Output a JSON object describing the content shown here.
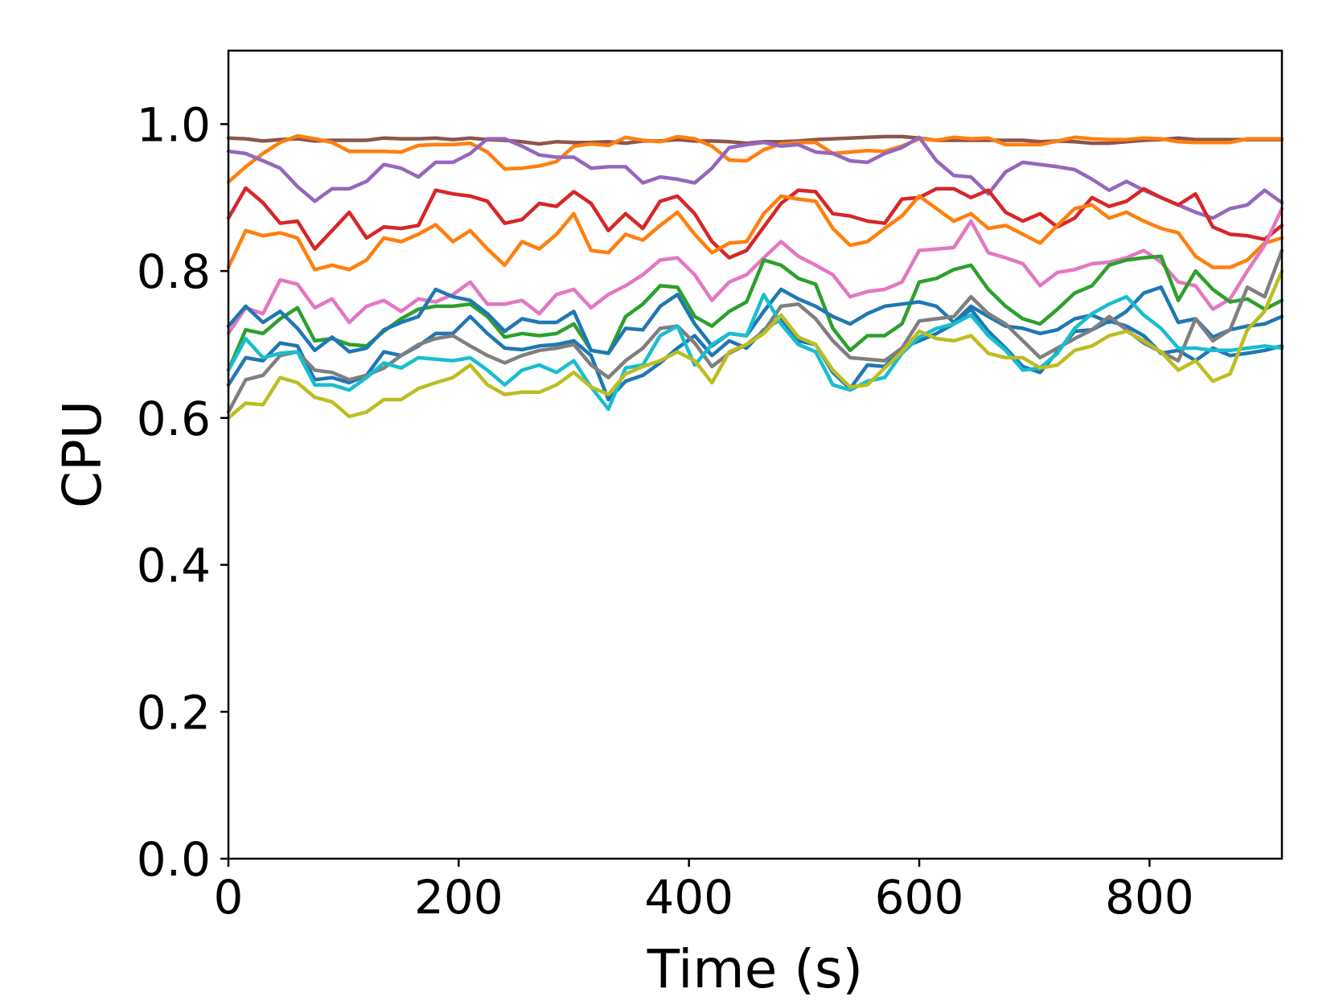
{
  "chart_data": {
    "type": "line",
    "title": "",
    "xlabel": "Time (s)",
    "ylabel": "CPU",
    "xlim": [
      0,
      915
    ],
    "ylim": [
      0.0,
      1.1
    ],
    "xticks": [
      0,
      200,
      400,
      600,
      800
    ],
    "xtick_labels": [
      "0",
      "200",
      "400",
      "600",
      "800"
    ],
    "yticks": [
      0.0,
      0.2,
      0.4,
      0.6,
      0.8,
      1.0
    ],
    "ytick_labels": [
      "0.0",
      "0.2",
      "0.4",
      "0.6",
      "0.8",
      "1.0"
    ],
    "grid": false,
    "legend": "none",
    "x": [
      0,
      15,
      30,
      45,
      60,
      75,
      90,
      105,
      120,
      135,
      150,
      165,
      180,
      195,
      210,
      225,
      240,
      255,
      270,
      285,
      300,
      315,
      330,
      345,
      360,
      375,
      390,
      405,
      420,
      435,
      450,
      465,
      480,
      495,
      510,
      525,
      540,
      555,
      570,
      585,
      600,
      615,
      630,
      645,
      660,
      675,
      690,
      705,
      720,
      735,
      750,
      765,
      780,
      795,
      810,
      825,
      840,
      855,
      870,
      885,
      900,
      915
    ],
    "series": [
      {
        "color": "#8c564b",
        "values": [
          0.981,
          0.98,
          0.977,
          0.979,
          0.98,
          0.977,
          0.978,
          0.978,
          0.978,
          0.981,
          0.98,
          0.98,
          0.981,
          0.979,
          0.981,
          0.979,
          0.978,
          0.976,
          0.973,
          0.976,
          0.975,
          0.975,
          0.976,
          0.974,
          0.977,
          0.977,
          0.979,
          0.977,
          0.977,
          0.976,
          0.974,
          0.976,
          0.976,
          0.977,
          0.979,
          0.98,
          0.981,
          0.982,
          0.983,
          0.983,
          0.981,
          0.978,
          0.978,
          0.978,
          0.978,
          0.978,
          0.978,
          0.976,
          0.977,
          0.976,
          0.974,
          0.974,
          0.976,
          0.978,
          0.979,
          0.981,
          0.979,
          0.979,
          0.979,
          0.979,
          0.979,
          0.979
        ]
      },
      {
        "color": "#ff7f0e",
        "values": [
          0.921,
          0.942,
          0.96,
          0.975,
          0.984,
          0.98,
          0.975,
          0.963,
          0.963,
          0.963,
          0.962,
          0.971,
          0.972,
          0.972,
          0.974,
          0.962,
          0.939,
          0.94,
          0.943,
          0.949,
          0.97,
          0.973,
          0.971,
          0.982,
          0.978,
          0.976,
          0.983,
          0.98,
          0.97,
          0.951,
          0.95,
          0.965,
          0.973,
          0.975,
          0.975,
          0.96,
          0.962,
          0.964,
          0.963,
          0.97,
          0.98,
          0.978,
          0.982,
          0.98,
          0.981,
          0.972,
          0.972,
          0.972,
          0.977,
          0.982,
          0.98,
          0.979,
          0.979,
          0.981,
          0.98,
          0.976,
          0.975,
          0.975,
          0.975,
          0.98,
          0.98,
          0.98
        ]
      },
      {
        "color": "#9467bd",
        "values": [
          0.963,
          0.96,
          0.95,
          0.94,
          0.915,
          0.895,
          0.912,
          0.912,
          0.922,
          0.945,
          0.94,
          0.928,
          0.948,
          0.948,
          0.96,
          0.98,
          0.98,
          0.97,
          0.958,
          0.955,
          0.955,
          0.94,
          0.942,
          0.942,
          0.92,
          0.928,
          0.925,
          0.92,
          0.94,
          0.968,
          0.972,
          0.975,
          0.97,
          0.972,
          0.962,
          0.96,
          0.95,
          0.948,
          0.96,
          0.968,
          0.982,
          0.95,
          0.93,
          0.928,
          0.905,
          0.935,
          0.948,
          0.945,
          0.942,
          0.938,
          0.925,
          0.91,
          0.922,
          0.91,
          0.9,
          0.89,
          0.88,
          0.872,
          0.885,
          0.89,
          0.91,
          0.893
        ]
      },
      {
        "color": "#d62728",
        "values": [
          0.872,
          0.913,
          0.893,
          0.865,
          0.868,
          0.83,
          0.855,
          0.88,
          0.845,
          0.86,
          0.858,
          0.862,
          0.91,
          0.905,
          0.902,
          0.895,
          0.865,
          0.87,
          0.892,
          0.888,
          0.908,
          0.892,
          0.855,
          0.878,
          0.858,
          0.895,
          0.902,
          0.878,
          0.84,
          0.818,
          0.828,
          0.86,
          0.892,
          0.91,
          0.908,
          0.878,
          0.875,
          0.868,
          0.865,
          0.898,
          0.9,
          0.912,
          0.912,
          0.9,
          0.91,
          0.88,
          0.868,
          0.878,
          0.86,
          0.872,
          0.9,
          0.888,
          0.895,
          0.912,
          0.9,
          0.89,
          0.905,
          0.86,
          0.85,
          0.848,
          0.843,
          0.862
        ]
      },
      {
        "color": "#ff7f0e",
        "values": [
          0.805,
          0.855,
          0.848,
          0.852,
          0.845,
          0.802,
          0.808,
          0.802,
          0.815,
          0.845,
          0.84,
          0.85,
          0.863,
          0.84,
          0.855,
          0.83,
          0.808,
          0.84,
          0.83,
          0.85,
          0.878,
          0.828,
          0.825,
          0.85,
          0.842,
          0.862,
          0.88,
          0.85,
          0.825,
          0.838,
          0.84,
          0.878,
          0.902,
          0.898,
          0.895,
          0.858,
          0.835,
          0.84,
          0.858,
          0.875,
          0.902,
          0.885,
          0.868,
          0.878,
          0.858,
          0.862,
          0.85,
          0.838,
          0.862,
          0.885,
          0.89,
          0.872,
          0.88,
          0.868,
          0.858,
          0.852,
          0.82,
          0.805,
          0.805,
          0.815,
          0.838,
          0.845
        ]
      },
      {
        "color": "#e377c2",
        "values": [
          0.715,
          0.75,
          0.742,
          0.788,
          0.782,
          0.75,
          0.762,
          0.73,
          0.752,
          0.76,
          0.745,
          0.762,
          0.758,
          0.768,
          0.785,
          0.755,
          0.755,
          0.76,
          0.742,
          0.768,
          0.775,
          0.75,
          0.768,
          0.78,
          0.795,
          0.815,
          0.818,
          0.795,
          0.76,
          0.785,
          0.795,
          0.818,
          0.84,
          0.82,
          0.808,
          0.795,
          0.765,
          0.772,
          0.775,
          0.785,
          0.828,
          0.83,
          0.832,
          0.868,
          0.825,
          0.818,
          0.81,
          0.78,
          0.798,
          0.802,
          0.81,
          0.812,
          0.818,
          0.828,
          0.812,
          0.785,
          0.78,
          0.748,
          0.762,
          0.8,
          0.835,
          0.885
        ]
      },
      {
        "color": "#2ca02c",
        "values": [
          0.665,
          0.72,
          0.715,
          0.735,
          0.75,
          0.705,
          0.708,
          0.7,
          0.698,
          0.718,
          0.735,
          0.748,
          0.752,
          0.752,
          0.755,
          0.738,
          0.71,
          0.715,
          0.712,
          0.715,
          0.728,
          0.692,
          0.688,
          0.738,
          0.755,
          0.78,
          0.778,
          0.738,
          0.725,
          0.745,
          0.758,
          0.815,
          0.808,
          0.79,
          0.782,
          0.722,
          0.692,
          0.712,
          0.712,
          0.728,
          0.785,
          0.79,
          0.802,
          0.808,
          0.775,
          0.752,
          0.735,
          0.728,
          0.748,
          0.77,
          0.78,
          0.808,
          0.815,
          0.818,
          0.82,
          0.76,
          0.8,
          0.775,
          0.758,
          0.762,
          0.748,
          0.76
        ]
      },
      {
        "color": "#1f77b4",
        "values": [
          0.725,
          0.752,
          0.73,
          0.745,
          0.722,
          0.692,
          0.71,
          0.69,
          0.695,
          0.72,
          0.73,
          0.738,
          0.775,
          0.765,
          0.76,
          0.742,
          0.718,
          0.735,
          0.73,
          0.73,
          0.745,
          0.692,
          0.688,
          0.722,
          0.72,
          0.752,
          0.768,
          0.728,
          0.698,
          0.715,
          0.712,
          0.745,
          0.775,
          0.762,
          0.752,
          0.738,
          0.728,
          0.742,
          0.752,
          0.755,
          0.758,
          0.752,
          0.73,
          0.752,
          0.738,
          0.725,
          0.722,
          0.715,
          0.72,
          0.735,
          0.74,
          0.73,
          0.745,
          0.77,
          0.778,
          0.73,
          0.735,
          0.71,
          0.72,
          0.725,
          0.728,
          0.738
        ]
      },
      {
        "color": "#1f77b4",
        "values": [
          0.645,
          0.682,
          0.678,
          0.702,
          0.698,
          0.652,
          0.655,
          0.648,
          0.658,
          0.69,
          0.685,
          0.698,
          0.715,
          0.715,
          0.738,
          0.715,
          0.695,
          0.693,
          0.698,
          0.7,
          0.705,
          0.685,
          0.625,
          0.65,
          0.658,
          0.675,
          0.695,
          0.712,
          0.685,
          0.705,
          0.695,
          0.72,
          0.735,
          0.705,
          0.7,
          0.662,
          0.64,
          0.672,
          0.67,
          0.695,
          0.705,
          0.715,
          0.728,
          0.748,
          0.718,
          0.695,
          0.67,
          0.662,
          0.69,
          0.718,
          0.72,
          0.732,
          0.725,
          0.712,
          0.688,
          0.692,
          0.678,
          0.695,
          0.685,
          0.688,
          0.692,
          0.698
        ]
      },
      {
        "color": "#7f7f7f",
        "values": [
          0.608,
          0.652,
          0.658,
          0.685,
          0.69,
          0.665,
          0.662,
          0.652,
          0.658,
          0.668,
          0.685,
          0.7,
          0.708,
          0.712,
          0.698,
          0.685,
          0.675,
          0.685,
          0.692,
          0.695,
          0.7,
          0.672,
          0.655,
          0.678,
          0.695,
          0.722,
          0.725,
          0.702,
          0.67,
          0.688,
          0.7,
          0.718,
          0.752,
          0.755,
          0.735,
          0.705,
          0.682,
          0.68,
          0.678,
          0.695,
          0.732,
          0.735,
          0.738,
          0.765,
          0.742,
          0.728,
          0.705,
          0.682,
          0.695,
          0.708,
          0.72,
          0.738,
          0.72,
          0.702,
          0.69,
          0.678,
          0.735,
          0.705,
          0.72,
          0.778,
          0.765,
          0.828
        ]
      },
      {
        "color": "#17becf",
        "values": [
          0.665,
          0.708,
          0.682,
          0.688,
          0.69,
          0.645,
          0.645,
          0.638,
          0.655,
          0.675,
          0.668,
          0.682,
          0.68,
          0.678,
          0.682,
          0.665,
          0.645,
          0.665,
          0.672,
          0.662,
          0.678,
          0.642,
          0.612,
          0.668,
          0.672,
          0.712,
          0.725,
          0.672,
          0.7,
          0.715,
          0.712,
          0.768,
          0.728,
          0.7,
          0.69,
          0.645,
          0.638,
          0.65,
          0.655,
          0.688,
          0.71,
          0.722,
          0.728,
          0.74,
          0.712,
          0.692,
          0.665,
          0.668,
          0.688,
          0.722,
          0.742,
          0.755,
          0.765,
          0.74,
          0.722,
          0.695,
          0.695,
          0.692,
          0.692,
          0.695,
          0.698,
          0.695
        ]
      },
      {
        "color": "#bcbd22",
        "values": [
          0.6,
          0.62,
          0.618,
          0.655,
          0.648,
          0.628,
          0.622,
          0.602,
          0.608,
          0.625,
          0.625,
          0.64,
          0.648,
          0.655,
          0.672,
          0.645,
          0.632,
          0.635,
          0.635,
          0.645,
          0.662,
          0.642,
          0.632,
          0.66,
          0.67,
          0.678,
          0.69,
          0.678,
          0.648,
          0.69,
          0.7,
          0.715,
          0.74,
          0.71,
          0.7,
          0.665,
          0.642,
          0.645,
          0.668,
          0.69,
          0.718,
          0.708,
          0.705,
          0.712,
          0.688,
          0.682,
          0.682,
          0.668,
          0.672,
          0.692,
          0.698,
          0.712,
          0.718,
          0.705,
          0.69,
          0.665,
          0.678,
          0.65,
          0.66,
          0.72,
          0.745,
          0.8
        ]
      }
    ]
  }
}
